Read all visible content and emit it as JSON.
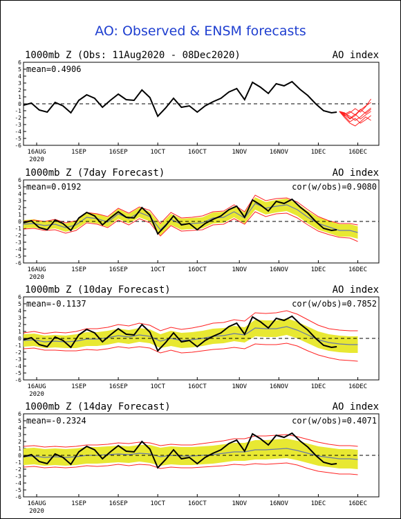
{
  "page": {
    "title": "AO: Observed & ENSM forecasts"
  },
  "colors": {
    "obs": "#000000",
    "ens_member": "#ff2020",
    "ens_mean": "#6677aa",
    "ens_spread": "#e8e832",
    "zero_line": "#000000",
    "title": "#1f3fd0"
  },
  "panels": [
    {
      "label": "1000mb Z (Obs: 11Aug2020 - 08Dec2020)",
      "index": "AO index",
      "mean": "mean=0.4906",
      "cor": ""
    },
    {
      "label": "1000mb Z (7day Forecast)",
      "index": "AO index",
      "mean": "mean=0.0192",
      "cor": "cor(w/obs)=0.9080"
    },
    {
      "label": "1000mb Z (10day Forecast)",
      "index": "AO index",
      "mean": "mean=-0.1137",
      "cor": "cor(w/obs)=0.7852"
    },
    {
      "label": "1000mb Z (14day Forecast)",
      "index": "AO index",
      "mean": "mean=-0.2324",
      "cor": "cor(w/obs)=0.4071"
    }
  ],
  "chart_data": {
    "type": "line",
    "ylim": [
      -6,
      6
    ],
    "yticks": [
      "6",
      "5",
      "4",
      "3",
      "2",
      "1",
      "0",
      "-1",
      "-2",
      "-3",
      "-4",
      "-5",
      "-6"
    ],
    "xticks": [
      {
        "day": 5,
        "label": "16AUG",
        "sub": "2020"
      },
      {
        "day": 21,
        "label": "1SEP",
        "sub": ""
      },
      {
        "day": 36,
        "label": "16SEP",
        "sub": ""
      },
      {
        "day": 51,
        "label": "1OCT",
        "sub": ""
      },
      {
        "day": 66,
        "label": "16OCT",
        "sub": ""
      },
      {
        "day": 82,
        "label": "1NOV",
        "sub": ""
      },
      {
        "day": 97,
        "label": "16NOV",
        "sub": ""
      },
      {
        "day": 112,
        "label": "1DEC",
        "sub": ""
      },
      {
        "day": 127,
        "label": "16DEC",
        "sub": ""
      }
    ],
    "observed": {
      "x": [
        0,
        3,
        6,
        9,
        12,
        15,
        18,
        21,
        24,
        27,
        30,
        33,
        36,
        39,
        42,
        45,
        48,
        51,
        54,
        57,
        60,
        63,
        66,
        69,
        72,
        75,
        78,
        81,
        84,
        87,
        90,
        93,
        96,
        99,
        102,
        105,
        108,
        111,
        114,
        117,
        119
      ],
      "y": [
        -0.2,
        0.1,
        -0.9,
        -1.2,
        0.2,
        -0.3,
        -1.3,
        0.5,
        1.3,
        0.8,
        -0.5,
        0.5,
        1.4,
        0.6,
        0.5,
        2.0,
        0.9,
        -1.8,
        -0.6,
        0.8,
        -0.5,
        -0.3,
        -1.2,
        -0.3,
        0.3,
        0.8,
        1.7,
        2.2,
        0.6,
        3.1,
        2.4,
        1.5,
        2.9,
        2.6,
        3.2,
        2.1,
        1.2,
        0.0,
        -1.0,
        -1.3,
        -1.2
      ]
    },
    "ensemble_forecast": {
      "panel": 1,
      "x": [
        120,
        122,
        124,
        126,
        128,
        130,
        132
      ],
      "members": [
        [
          -1.1,
          -1.6,
          -2.2,
          -1.7,
          -0.9,
          -0.3,
          0.2
        ],
        [
          -1.1,
          -1.4,
          -1.8,
          -2.4,
          -1.9,
          -1.2,
          -0.6
        ],
        [
          -1.1,
          -1.8,
          -2.6,
          -2.1,
          -2.8,
          -2.3,
          -1.7
        ],
        [
          -1.1,
          -1.5,
          -1.1,
          -1.6,
          -0.8,
          -1.4,
          -0.8
        ],
        [
          -1.1,
          -2.0,
          -2.8,
          -3.2,
          -2.6,
          -1.9,
          -2.4
        ],
        [
          -1.1,
          -1.7,
          -1.3,
          -0.7,
          -1.2,
          -0.4,
          0.7
        ],
        [
          -1.1,
          -1.3,
          -2.1,
          -1.5,
          -2.2,
          -1.6,
          -1.1
        ]
      ]
    },
    "forecasts": [
      {
        "panel": 2,
        "lead": "7day",
        "x": [
          0,
          4,
          8,
          12,
          16,
          20,
          24,
          28,
          32,
          36,
          40,
          44,
          48,
          52,
          56,
          60,
          64,
          68,
          72,
          76,
          80,
          84,
          88,
          92,
          96,
          100,
          104,
          108,
          112,
          116,
          120,
          124,
          127
        ],
        "mean": [
          -0.4,
          -0.3,
          -0.6,
          -0.4,
          -0.9,
          -0.5,
          0.6,
          0.4,
          -0.1,
          1.1,
          0.4,
          1.3,
          0.7,
          -1.2,
          0.3,
          -0.4,
          -0.3,
          -0.2,
          0.5,
          0.6,
          1.4,
          0.5,
          2.6,
          1.9,
          2.2,
          2.4,
          1.7,
          0.6,
          -0.3,
          -0.8,
          -1.3,
          -1.3,
          -1.6
        ],
        "spread": [
          0.6,
          0.6,
          0.6,
          0.6,
          0.6,
          0.6,
          0.7,
          0.7,
          0.7,
          0.7,
          0.7,
          0.7,
          0.7,
          0.8,
          0.8,
          0.8,
          0.8,
          0.8,
          0.8,
          0.8,
          0.8,
          0.8,
          0.9,
          0.9,
          0.9,
          0.9,
          0.9,
          0.9,
          0.9,
          0.9,
          0.9,
          0.9,
          0.9
        ],
        "upper": [
          0.0,
          0.2,
          0.0,
          0.3,
          -0.2,
          0.1,
          1.3,
          1.1,
          0.7,
          1.9,
          1.2,
          2.1,
          1.6,
          -0.3,
          1.3,
          0.5,
          0.6,
          0.8,
          1.4,
          1.5,
          2.4,
          1.4,
          3.8,
          3.0,
          3.3,
          3.4,
          2.8,
          1.7,
          0.7,
          0.1,
          -0.3,
          -0.3,
          -0.5
        ],
        "lower": [
          -1.1,
          -1.0,
          -1.3,
          -1.2,
          -1.7,
          -1.3,
          -0.2,
          -0.4,
          -0.9,
          0.2,
          -0.5,
          0.4,
          -0.2,
          -2.1,
          -0.6,
          -1.4,
          -1.3,
          -1.2,
          -0.5,
          -0.4,
          0.4,
          -0.4,
          1.4,
          0.7,
          1.1,
          1.2,
          0.5,
          -0.5,
          -1.4,
          -1.9,
          -2.3,
          -2.4,
          -2.9
        ]
      },
      {
        "panel": 3,
        "lead": "10day",
        "x": [
          0,
          4,
          8,
          12,
          16,
          20,
          24,
          28,
          32,
          36,
          40,
          44,
          48,
          52,
          56,
          60,
          64,
          68,
          72,
          76,
          80,
          84,
          88,
          92,
          96,
          100,
          104,
          108,
          112,
          116,
          120,
          124,
          127
        ],
        "mean": [
          -0.3,
          -0.2,
          -0.5,
          -0.4,
          -0.5,
          -0.4,
          -0.1,
          -0.1,
          0.1,
          0.4,
          0.2,
          0.5,
          0.3,
          -0.4,
          0.0,
          -0.3,
          -0.2,
          0.0,
          0.3,
          0.4,
          0.7,
          0.5,
          1.5,
          1.4,
          1.4,
          1.7,
          1.2,
          0.5,
          -0.2,
          -0.6,
          -0.8,
          -0.9,
          -0.9
        ],
        "spread": [
          0.9,
          0.9,
          0.9,
          0.9,
          0.9,
          1.0,
          1.0,
          1.0,
          1.0,
          1.0,
          1.0,
          1.0,
          1.0,
          1.0,
          1.1,
          1.1,
          1.1,
          1.1,
          1.1,
          1.1,
          1.1,
          1.1,
          1.2,
          1.2,
          1.2,
          1.2,
          1.2,
          1.2,
          1.2,
          1.2,
          1.2,
          1.2,
          1.2
        ],
        "upper": [
          0.8,
          1.0,
          0.7,
          0.9,
          0.8,
          1.0,
          1.4,
          1.4,
          1.6,
          2.0,
          1.8,
          2.2,
          1.9,
          1.1,
          1.6,
          1.3,
          1.5,
          1.8,
          2.2,
          2.3,
          2.7,
          2.5,
          3.7,
          3.6,
          3.7,
          4.0,
          3.5,
          2.7,
          1.9,
          1.4,
          1.2,
          1.1,
          1.1
        ],
        "lower": [
          -1.5,
          -1.4,
          -1.7,
          -1.7,
          -1.8,
          -1.8,
          -1.6,
          -1.7,
          -1.5,
          -1.2,
          -1.4,
          -1.2,
          -1.4,
          -2.1,
          -1.7,
          -2.1,
          -2.0,
          -1.8,
          -1.6,
          -1.5,
          -1.3,
          -1.5,
          -0.8,
          -0.9,
          -0.9,
          -0.7,
          -1.1,
          -1.8,
          -2.4,
          -2.8,
          -3.1,
          -3.2,
          -3.3
        ]
      },
      {
        "panel": 4,
        "lead": "14day",
        "x": [
          0,
          4,
          8,
          12,
          16,
          20,
          24,
          28,
          32,
          36,
          40,
          44,
          48,
          52,
          56,
          60,
          64,
          68,
          72,
          76,
          80,
          84,
          88,
          92,
          96,
          100,
          104,
          108,
          112,
          116,
          120,
          124,
          127
        ],
        "mean": [
          -0.2,
          -0.1,
          -0.3,
          -0.2,
          -0.3,
          -0.2,
          0.0,
          0.0,
          0.1,
          0.2,
          0.1,
          0.3,
          0.2,
          -0.2,
          0.0,
          -0.1,
          -0.1,
          0.0,
          0.1,
          0.3,
          0.5,
          0.5,
          0.8,
          0.8,
          0.9,
          1.0,
          0.7,
          0.3,
          -0.1,
          -0.3,
          -0.5,
          -0.5,
          -0.6
        ],
        "spread": [
          1.2,
          1.2,
          1.2,
          1.2,
          1.2,
          1.2,
          1.2,
          1.2,
          1.2,
          1.2,
          1.2,
          1.2,
          1.3,
          1.3,
          1.3,
          1.3,
          1.3,
          1.3,
          1.3,
          1.3,
          1.3,
          1.3,
          1.4,
          1.4,
          1.4,
          1.4,
          1.4,
          1.4,
          1.4,
          1.4,
          1.4,
          1.4,
          1.4
        ],
        "upper": [
          1.3,
          1.4,
          1.2,
          1.3,
          1.2,
          1.3,
          1.5,
          1.5,
          1.6,
          1.8,
          1.7,
          1.9,
          1.8,
          1.4,
          1.6,
          1.5,
          1.5,
          1.7,
          1.9,
          2.1,
          2.4,
          2.4,
          2.8,
          2.8,
          2.9,
          3.0,
          2.7,
          2.3,
          1.9,
          1.6,
          1.4,
          1.4,
          1.3
        ],
        "lower": [
          -1.7,
          -1.6,
          -1.8,
          -1.7,
          -1.8,
          -1.7,
          -1.5,
          -1.6,
          -1.5,
          -1.3,
          -1.5,
          -1.3,
          -1.4,
          -1.9,
          -1.7,
          -1.8,
          -1.8,
          -1.7,
          -1.6,
          -1.5,
          -1.3,
          -1.4,
          -1.2,
          -1.3,
          -1.2,
          -1.1,
          -1.4,
          -1.9,
          -2.3,
          -2.5,
          -2.7,
          -2.7,
          -2.8
        ]
      }
    ]
  }
}
